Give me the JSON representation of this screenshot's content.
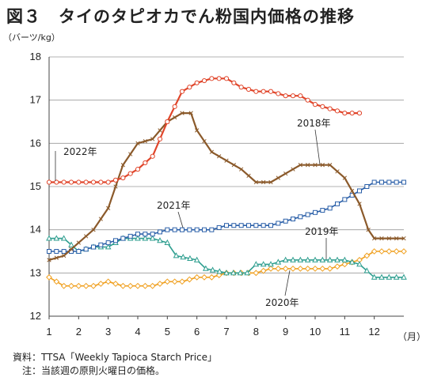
{
  "title": "図３　タイのタピオカでん粉国内価格の推移",
  "unit_label": "（バーツ/kg）",
  "month_unit": "（月）",
  "notes": [
    "資料：TTSA「Weekly Tapioca Starch Price」",
    "　注：当該週の原則火曜日の価格。"
  ],
  "colors": {
    "2018": "#8b5a2b",
    "2019": "#2e9e8f",
    "2020": "#f0a020",
    "2021": "#2a5fa8",
    "2022": "#e0452a"
  },
  "chart_data": {
    "type": "line",
    "title": "図３　タイのタピオカでん粉国内価格の推移",
    "ylabel": "（バーツ/kg）",
    "xlabel": "（月）",
    "ylim": [
      12,
      18
    ],
    "xlim": [
      1,
      13
    ],
    "x_ticks": [
      "1",
      "2",
      "3",
      "4",
      "5",
      "6",
      "7",
      "8",
      "9",
      "10",
      "11",
      "12"
    ],
    "y_ticks": [
      "12",
      "13",
      "14",
      "15",
      "16",
      "17",
      "18"
    ],
    "grid": "horizontal",
    "series": [
      {
        "name": "2018年",
        "marker": "x",
        "points": [
          [
            1,
            13.3
          ],
          [
            1.5,
            13.4
          ],
          [
            2,
            13.7
          ],
          [
            2.5,
            14.0
          ],
          [
            3,
            14.5
          ],
          [
            3.5,
            15.5
          ],
          [
            4,
            16.0
          ],
          [
            4.5,
            16.1
          ],
          [
            5,
            16.5
          ],
          [
            5.5,
            16.7
          ],
          [
            5.8,
            16.7
          ],
          [
            6,
            16.3
          ],
          [
            6.5,
            15.8
          ],
          [
            7,
            15.6
          ],
          [
            7.5,
            15.4
          ],
          [
            8,
            15.1
          ],
          [
            8.5,
            15.1
          ],
          [
            9,
            15.3
          ],
          [
            9.5,
            15.5
          ],
          [
            10,
            15.5
          ],
          [
            10.5,
            15.5
          ],
          [
            11,
            15.2
          ],
          [
            11.5,
            14.6
          ],
          [
            11.8,
            14.0
          ],
          [
            12,
            13.8
          ],
          [
            12.5,
            13.8
          ],
          [
            13,
            13.8
          ]
        ]
      },
      {
        "name": "2019年",
        "marker": "triangle",
        "points": [
          [
            1,
            13.8
          ],
          [
            1.5,
            13.8
          ],
          [
            2,
            13.5
          ],
          [
            2.5,
            13.6
          ],
          [
            3,
            13.6
          ],
          [
            3.5,
            13.8
          ],
          [
            4,
            13.8
          ],
          [
            4.5,
            13.8
          ],
          [
            5,
            13.7
          ],
          [
            5.3,
            13.4
          ],
          [
            6,
            13.3
          ],
          [
            6.3,
            13.1
          ],
          [
            7,
            13.0
          ],
          [
            7.7,
            13.0
          ],
          [
            8,
            13.2
          ],
          [
            8.5,
            13.2
          ],
          [
            9,
            13.3
          ],
          [
            9.5,
            13.3
          ],
          [
            10,
            13.3
          ],
          [
            10.5,
            13.3
          ],
          [
            11,
            13.3
          ],
          [
            11.5,
            13.2
          ],
          [
            12,
            12.9
          ],
          [
            12.5,
            12.9
          ],
          [
            13,
            12.9
          ]
        ]
      },
      {
        "name": "2020年",
        "marker": "diamond",
        "points": [
          [
            1,
            12.9
          ],
          [
            1.5,
            12.7
          ],
          [
            2,
            12.7
          ],
          [
            2.5,
            12.7
          ],
          [
            3,
            12.8
          ],
          [
            3.5,
            12.7
          ],
          [
            4,
            12.7
          ],
          [
            4.5,
            12.7
          ],
          [
            5,
            12.8
          ],
          [
            5.5,
            12.8
          ],
          [
            6,
            12.9
          ],
          [
            6.5,
            12.9
          ],
          [
            7,
            13.0
          ],
          [
            7.5,
            13.0
          ],
          [
            8,
            13.0
          ],
          [
            8.5,
            13.1
          ],
          [
            9,
            13.1
          ],
          [
            9.5,
            13.1
          ],
          [
            10,
            13.1
          ],
          [
            10.5,
            13.1
          ],
          [
            11,
            13.2
          ],
          [
            11.5,
            13.3
          ],
          [
            12,
            13.5
          ],
          [
            12.5,
            13.5
          ],
          [
            13,
            13.5
          ]
        ]
      },
      {
        "name": "2021年",
        "marker": "square",
        "points": [
          [
            1,
            13.5
          ],
          [
            1.5,
            13.5
          ],
          [
            2,
            13.5
          ],
          [
            2.5,
            13.6
          ],
          [
            3,
            13.7
          ],
          [
            3.5,
            13.8
          ],
          [
            4,
            13.9
          ],
          [
            4.5,
            13.9
          ],
          [
            5,
            14.0
          ],
          [
            5.5,
            14.0
          ],
          [
            6,
            14.0
          ],
          [
            6.5,
            14.0
          ],
          [
            7,
            14.1
          ],
          [
            7.5,
            14.1
          ],
          [
            8,
            14.1
          ],
          [
            8.5,
            14.1
          ],
          [
            9,
            14.2
          ],
          [
            9.5,
            14.3
          ],
          [
            10,
            14.4
          ],
          [
            10.5,
            14.5
          ],
          [
            11,
            14.7
          ],
          [
            11.5,
            14.9
          ],
          [
            12,
            15.1
          ],
          [
            12.5,
            15.1
          ],
          [
            13,
            15.1
          ]
        ]
      },
      {
        "name": "2022年",
        "marker": "circle",
        "points": [
          [
            1,
            15.1
          ],
          [
            1.5,
            15.1
          ],
          [
            2,
            15.1
          ],
          [
            2.5,
            15.1
          ],
          [
            3,
            15.1
          ],
          [
            3.5,
            15.2
          ],
          [
            4,
            15.4
          ],
          [
            4.5,
            15.7
          ],
          [
            5,
            16.5
          ],
          [
            5.5,
            17.2
          ],
          [
            6,
            17.4
          ],
          [
            6.5,
            17.5
          ],
          [
            7,
            17.5
          ],
          [
            7.5,
            17.3
          ],
          [
            8,
            17.2
          ],
          [
            8.5,
            17.2
          ],
          [
            9,
            17.1
          ],
          [
            9.5,
            17.1
          ],
          [
            10,
            16.9
          ],
          [
            10.5,
            16.8
          ],
          [
            11,
            16.7
          ],
          [
            11.5,
            16.7
          ]
        ]
      }
    ]
  }
}
